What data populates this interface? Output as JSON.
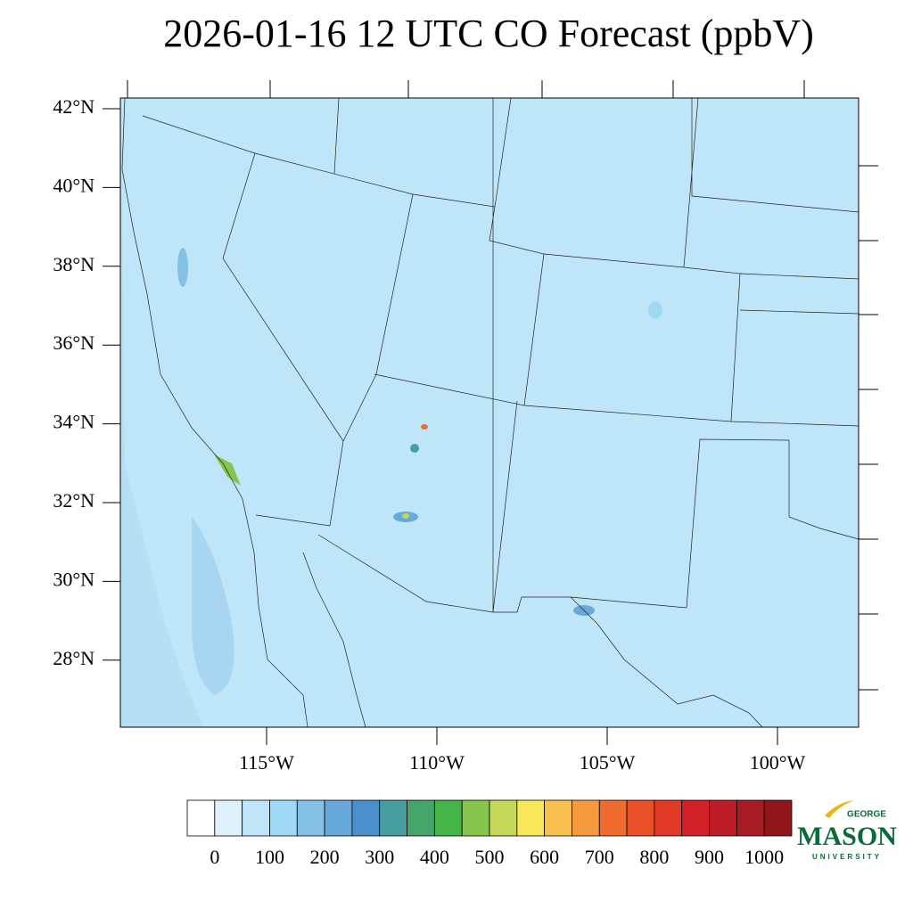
{
  "title": "2026-01-16 12 UTC CO Forecast (ppbV)",
  "latitudes": [
    {
      "value": 42,
      "label": "42°N"
    },
    {
      "value": 40,
      "label": "40°N"
    },
    {
      "value": 38,
      "label": "38°N"
    },
    {
      "value": 36,
      "label": "36°N"
    },
    {
      "value": 34,
      "label": "34°N"
    },
    {
      "value": 32,
      "label": "32°N"
    },
    {
      "value": 30,
      "label": "30°N"
    },
    {
      "value": 28,
      "label": "28°N"
    }
  ],
  "longitudes": [
    {
      "value": -115,
      "label": "115°W"
    },
    {
      "value": -110,
      "label": "110°W"
    },
    {
      "value": -105,
      "label": "105°W"
    },
    {
      "value": -100,
      "label": "100°W"
    }
  ],
  "colorbar": {
    "levels": [
      0,
      50,
      100,
      150,
      200,
      250,
      300,
      350,
      400,
      450,
      500,
      550,
      600,
      650,
      700,
      750,
      800,
      850,
      900,
      950,
      1000
    ],
    "colors": [
      "#ffffff",
      "#dff2fb",
      "#bfe6f8",
      "#9fd9f4",
      "#85c1e5",
      "#68a9db",
      "#4a8fcc",
      "#469e9e",
      "#44a46a",
      "#45b54a",
      "#86c54c",
      "#c5d758",
      "#f9e75a",
      "#f8c04e",
      "#f69a3f",
      "#f26b2e",
      "#eb5129",
      "#e13b27",
      "#d32129",
      "#bc1c25",
      "#a71b22",
      "#8f161b"
    ],
    "ticks": [
      0,
      100,
      200,
      300,
      400,
      500,
      600,
      700,
      800,
      900,
      1000
    ]
  },
  "logo": {
    "top": "GEORGE",
    "name": "MASON",
    "bottom": "UNIVERSITY"
  }
}
